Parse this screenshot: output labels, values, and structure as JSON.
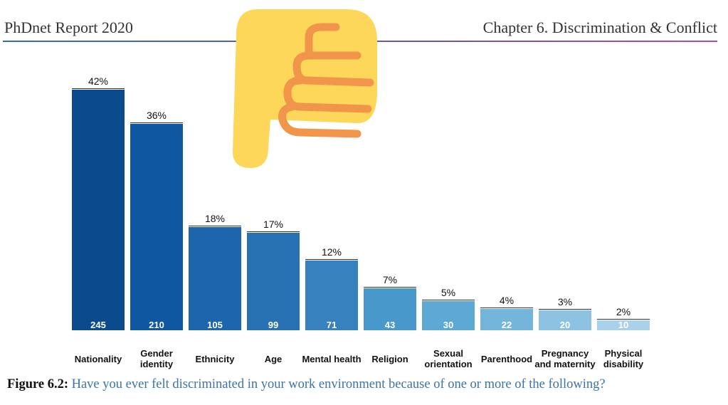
{
  "header": {
    "left": "PhDnet Report 2020",
    "right": "Chapter 6.  Discrimination & Conflict"
  },
  "chart_data": {
    "type": "bar",
    "categories": [
      "Nationality",
      "Gender identity",
      "Ethnicity",
      "Age",
      "Mental health",
      "Religion",
      "Sexual orientation",
      "Parenthood",
      "Pregnancy and maternity",
      "Physical disability"
    ],
    "values": [
      245,
      210,
      105,
      99,
      71,
      43,
      30,
      22,
      20,
      10
    ],
    "shares": [
      {
        "value": 42,
        "label": "42%"
      },
      {
        "value": 36,
        "label": "36%"
      },
      {
        "value": 18,
        "label": "18%"
      },
      {
        "value": 17,
        "label": "17%"
      },
      {
        "value": 12,
        "label": "12%"
      },
      {
        "value": 7,
        "label": "7%"
      },
      {
        "value": 5,
        "label": "5%"
      },
      {
        "value": 4,
        "label": "4%"
      },
      {
        "value": 3,
        "label": "3%"
      },
      {
        "value": 2,
        "label": "2%"
      }
    ],
    "colors": [
      "#0b4a8c",
      "#0f57a0",
      "#1d66ad",
      "#2872b4",
      "#3782be",
      "#4898cb",
      "#5ea8d5",
      "#74b5dc",
      "#8dc2e3",
      "#a9d1ea"
    ]
  },
  "caption": {
    "label": "Figure 6.2:",
    "text": "Have you ever felt discriminated in your work environment because of one or more of the following?"
  }
}
